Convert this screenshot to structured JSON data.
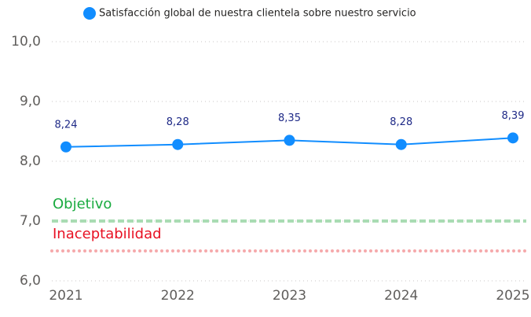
{
  "chart_data": {
    "type": "line",
    "series": [
      {
        "name": "Satisfacción global de nuestra clientela sobre nuestro servicio",
        "color": "#118dff",
        "values": [
          8.24,
          8.28,
          8.35,
          8.28,
          8.39
        ],
        "value_labels": [
          "8,24",
          "8,28",
          "8,35",
          "8,28",
          "8,39"
        ]
      }
    ],
    "categories": [
      "2021",
      "2022",
      "2023",
      "2024",
      "2025"
    ],
    "ylim": [
      6,
      10
    ],
    "yticks": [
      {
        "value": 6,
        "label": "6,0"
      },
      {
        "value": 7,
        "label": "7,0"
      },
      {
        "value": 8,
        "label": "8,0"
      },
      {
        "value": 9,
        "label": "9,0"
      },
      {
        "value": 10,
        "label": "10,0"
      }
    ],
    "grid": true,
    "reference_lines": [
      {
        "label": "Objetivo",
        "value": 7,
        "color": "#a9dcb3",
        "label_color": "#1aab40",
        "style": "dashed"
      },
      {
        "label": "Inaceptabilidad",
        "value": 6.5,
        "color": "#f5a9ab",
        "label_color": "#e81123",
        "style": "dotted"
      }
    ]
  }
}
